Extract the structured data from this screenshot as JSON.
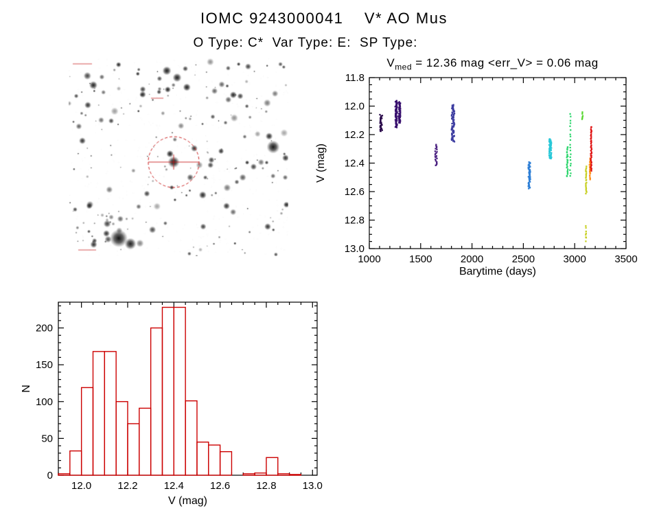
{
  "header": {
    "title": "IOMC 9243000041    V* AO Mus",
    "subtitle": "O Type: C*  Var Type: E:  SP Type:"
  },
  "colors": {
    "axis": "#000000",
    "histogram": "#cc0000",
    "marker": "#cc2222"
  },
  "lightcurve": {
    "title_v": "V",
    "title_sub": "med",
    "title_rest": " = 12.36 mag <err_V> = 0.06 mag",
    "xlabel": "Barytime (days)",
    "ylabel": "V (mag)"
  },
  "histogram": {
    "xlabel": "V (mag)",
    "ylabel": "N"
  },
  "chart_data": [
    {
      "type": "scatter",
      "title": "V_med = 12.36 mag <err_V> = 0.06 mag",
      "xlabel": "Barytime (days)",
      "ylabel": "V (mag)",
      "xlim": [
        1000,
        3500
      ],
      "ylim": [
        11.8,
        13.0
      ],
      "y_axis_inverted_magnitudes": true,
      "xticks": [
        1000,
        1500,
        2000,
        2500,
        3000,
        3500
      ],
      "yticks": [
        11.8,
        12.0,
        12.2,
        12.4,
        12.6,
        12.8,
        13.0
      ],
      "x_minor_step": 100,
      "y_minor_step": 0.05,
      "clusters": [
        {
          "x": 1115,
          "xw": 12,
          "vmin": 12.06,
          "vmax": 12.18,
          "n": 30,
          "color": "#2a0a4a"
        },
        {
          "x": 1262,
          "xw": 10,
          "vmin": 11.96,
          "vmax": 12.15,
          "n": 70,
          "color": "#38106e"
        },
        {
          "x": 1295,
          "xw": 8,
          "vmin": 11.97,
          "vmax": 12.12,
          "n": 45,
          "color": "#38106e"
        },
        {
          "x": 1650,
          "xw": 10,
          "vmin": 12.27,
          "vmax": 12.42,
          "n": 22,
          "color": "#4a2080"
        },
        {
          "x": 1815,
          "xw": 14,
          "vmin": 11.99,
          "vmax": 12.25,
          "n": 75,
          "color": "#3c3ca0"
        },
        {
          "x": 2558,
          "xw": 10,
          "vmin": 12.39,
          "vmax": 12.58,
          "n": 50,
          "color": "#2e7fd6"
        },
        {
          "x": 2762,
          "xw": 12,
          "vmin": 12.23,
          "vmax": 12.37,
          "n": 50,
          "color": "#29c8d8"
        },
        {
          "x": 2928,
          "xw": 5,
          "vmin": 12.28,
          "vmax": 12.5,
          "n": 25,
          "color": "#2ed66e"
        },
        {
          "x": 2958,
          "xw": 4,
          "vmin": 12.05,
          "vmax": 12.5,
          "n": 20,
          "color": "#2ed66e"
        },
        {
          "x": 3075,
          "xw": 4,
          "vmin": 12.04,
          "vmax": 12.1,
          "n": 6,
          "color": "#57d62e"
        },
        {
          "x": 3112,
          "xw": 5,
          "vmin": 12.42,
          "vmax": 12.62,
          "n": 22,
          "color": "#c8d025"
        },
        {
          "x": 3110,
          "xw": 3,
          "vmin": 12.84,
          "vmax": 12.95,
          "n": 8,
          "color": "#c8d025"
        },
        {
          "x": 3148,
          "xw": 5,
          "vmin": 12.36,
          "vmax": 12.52,
          "n": 18,
          "color": "#ff8c1a"
        },
        {
          "x": 3160,
          "xw": 5,
          "vmin": 12.14,
          "vmax": 12.46,
          "n": 40,
          "color": "#e01212"
        }
      ]
    },
    {
      "type": "bar",
      "xlabel": "V (mag)",
      "ylabel": "N",
      "xlim": [
        11.9,
        13.02
      ],
      "ylim": [
        0,
        235
      ],
      "xticks": [
        12.0,
        12.2,
        12.4,
        12.6,
        12.8,
        13.0
      ],
      "yticks": [
        0,
        50,
        100,
        150,
        200
      ],
      "x_minor_step": 0.05,
      "y_minor_step": 10,
      "bin_width": 0.05,
      "bins": [
        {
          "v": 11.9,
          "n": 2
        },
        {
          "v": 11.95,
          "n": 33
        },
        {
          "v": 12.0,
          "n": 119
        },
        {
          "v": 12.05,
          "n": 168
        },
        {
          "v": 12.1,
          "n": 168
        },
        {
          "v": 12.15,
          "n": 100
        },
        {
          "v": 12.2,
          "n": 70
        },
        {
          "v": 12.25,
          "n": 91
        },
        {
          "v": 12.3,
          "n": 200
        },
        {
          "v": 12.35,
          "n": 228
        },
        {
          "v": 12.4,
          "n": 228
        },
        {
          "v": 12.45,
          "n": 101
        },
        {
          "v": 12.5,
          "n": 45
        },
        {
          "v": 12.55,
          "n": 41
        },
        {
          "v": 12.6,
          "n": 32
        },
        {
          "v": 12.65,
          "n": 0
        },
        {
          "v": 12.7,
          "n": 2
        },
        {
          "v": 12.75,
          "n": 3
        },
        {
          "v": 12.8,
          "n": 24
        },
        {
          "v": 12.85,
          "n": 2
        },
        {
          "v": 12.9,
          "n": 1
        }
      ]
    }
  ]
}
